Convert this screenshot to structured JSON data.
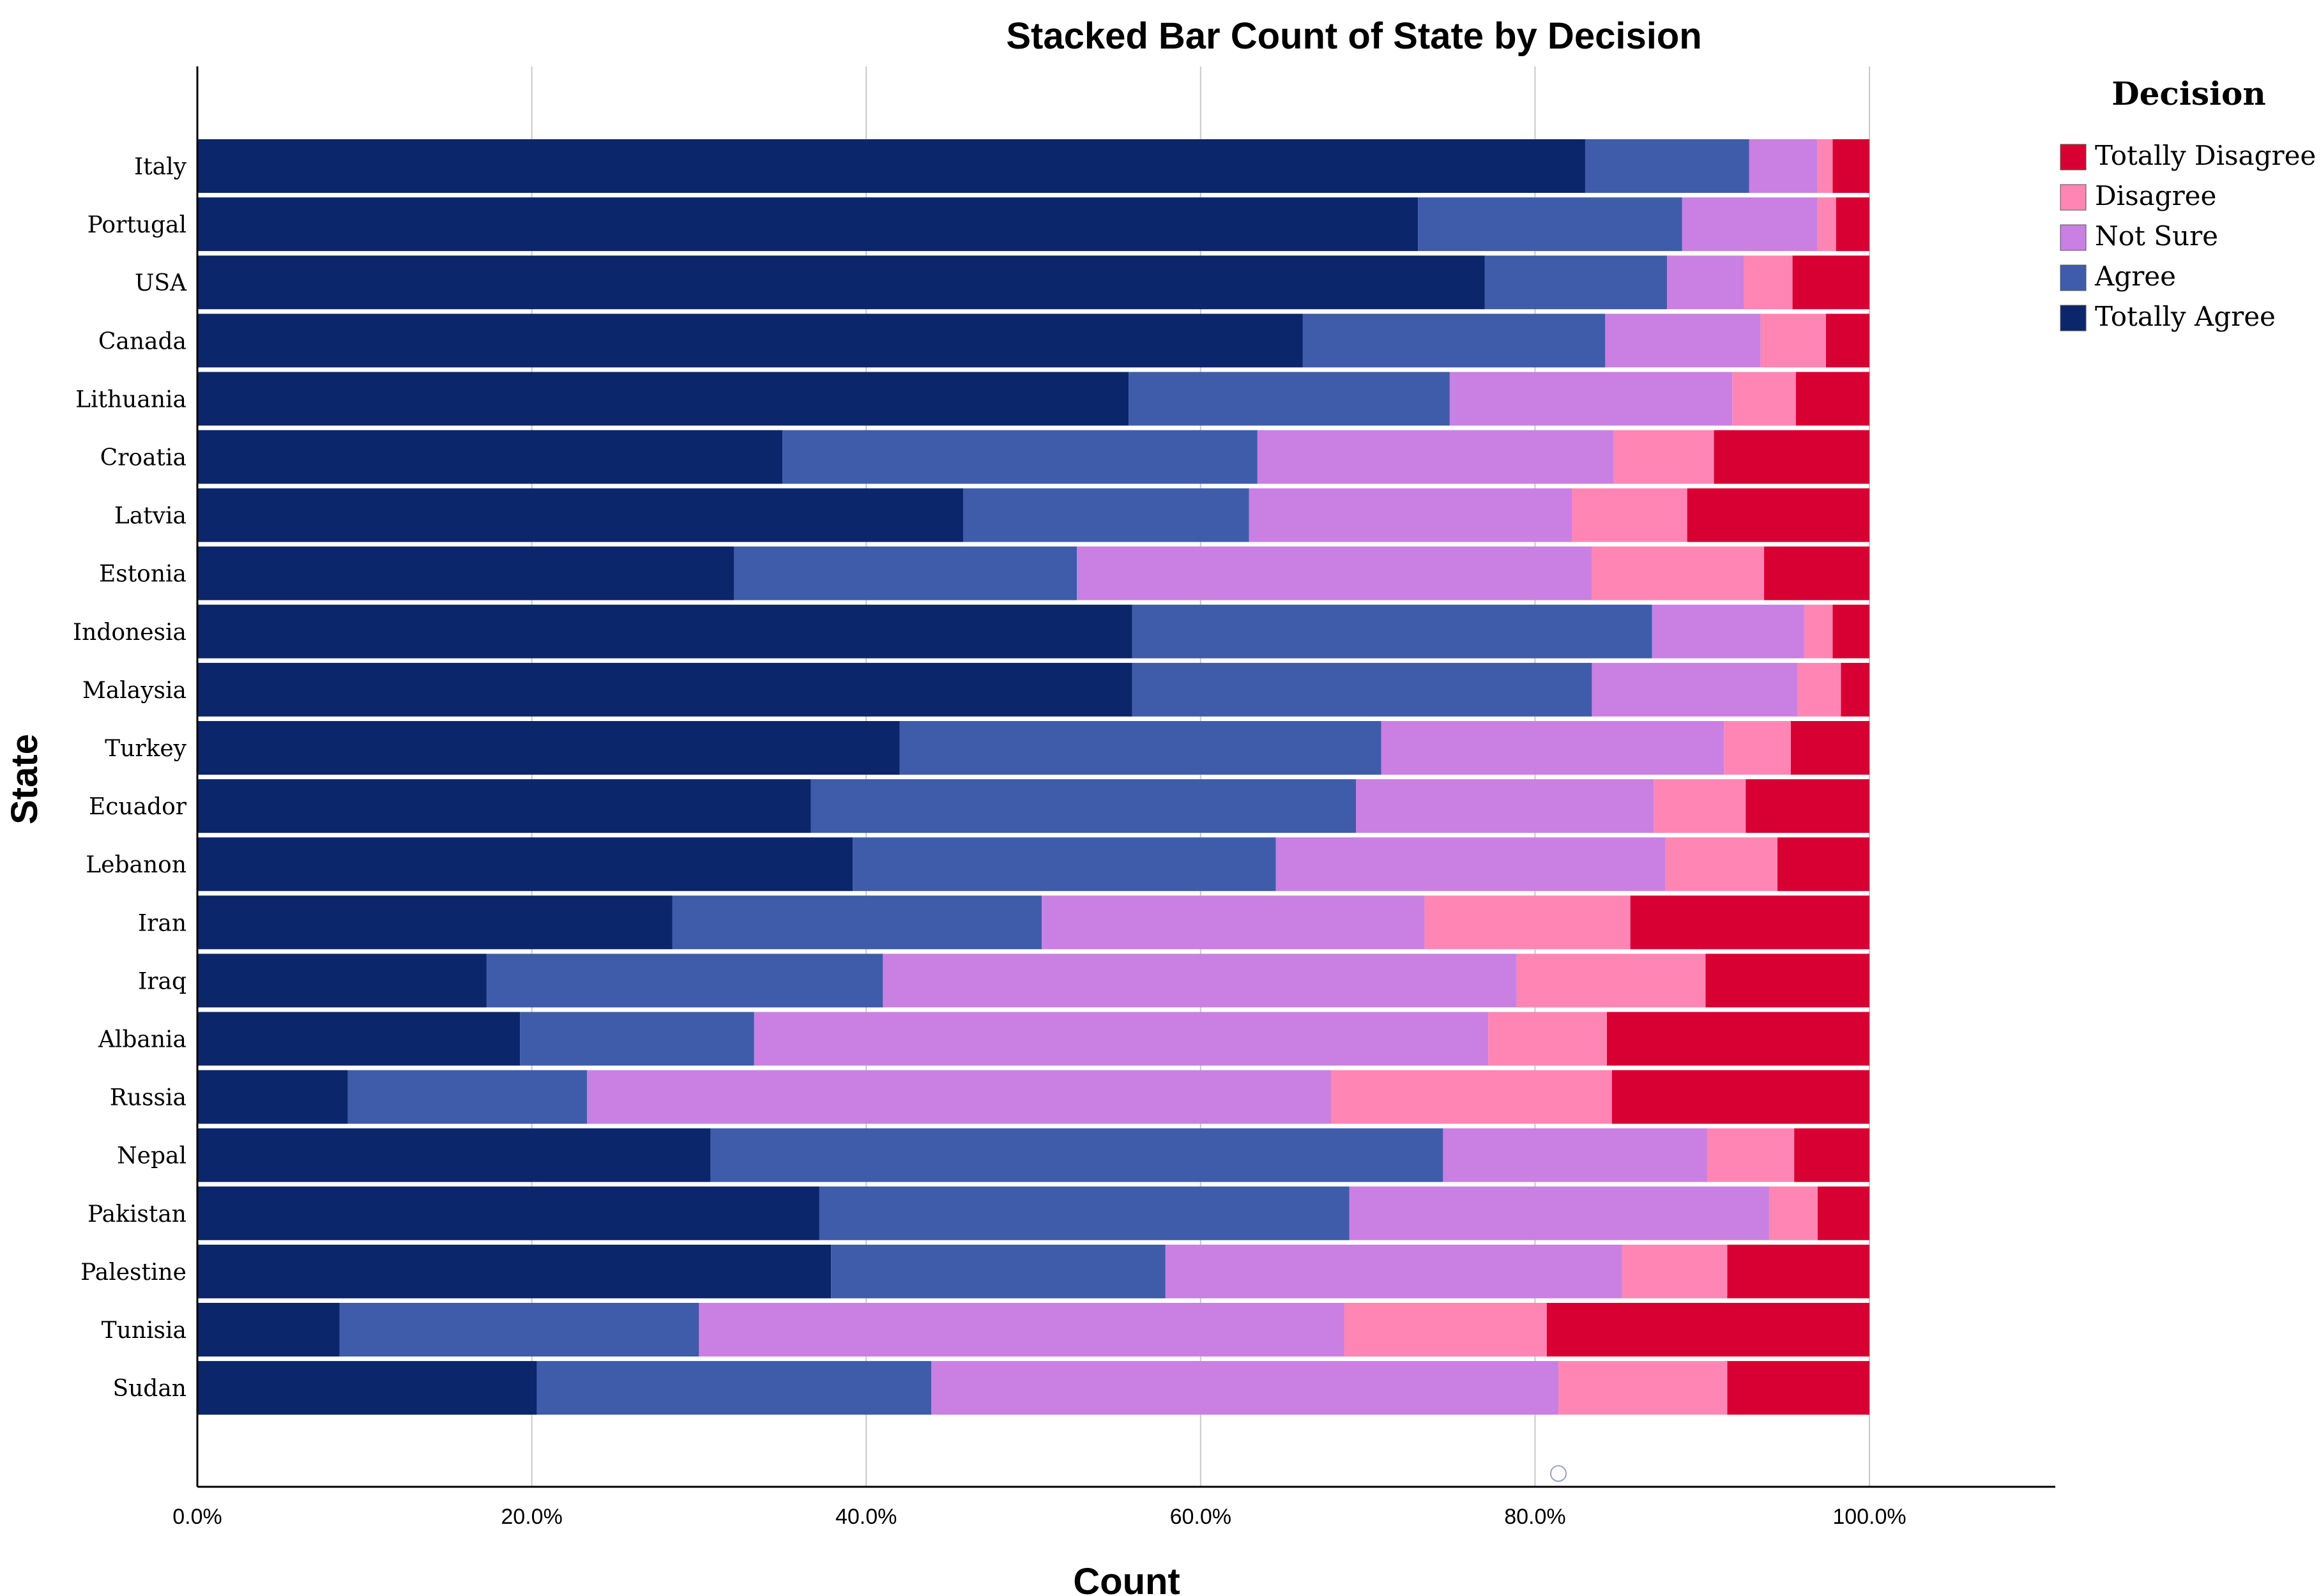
{
  "chart_data": {
    "type": "bar",
    "orientation": "horizontal",
    "stacked": "percent",
    "title": "Stacked Bar Count of State by Decision",
    "xlabel": "Count",
    "ylabel": "State",
    "xlim": [
      0,
      110
    ],
    "x_ticks": [
      "0.0%",
      "20.0%",
      "40.0%",
      "60.0%",
      "80.0%",
      "100.0%"
    ],
    "grid": "vertical",
    "legend_title": "Decision",
    "legend_position": "right",
    "categories": [
      "Italy",
      "Portugal",
      "USA",
      "Canada",
      "Lithuania",
      "Croatia",
      "Latvia",
      "Estonia",
      "Indonesia",
      "Malaysia",
      "Turkey",
      "Ecuador",
      "Lebanon",
      "Iran",
      "Iraq",
      "Albania",
      "Russia",
      "Nepal",
      "Pakistan",
      "Palestine",
      "Tunisia",
      "Sudan"
    ],
    "series": [
      {
        "name": "Totally Agree",
        "color": "#0c266c",
        "values": [
          83.0,
          73.0,
          77.0,
          66.1,
          55.7,
          35.0,
          45.8,
          32.1,
          55.9,
          55.9,
          42.0,
          36.7,
          39.2,
          28.4,
          17.3,
          19.3,
          9.0,
          30.7,
          37.2,
          37.9,
          8.5,
          20.3
        ]
      },
      {
        "name": "Agree",
        "color": "#3f5caa",
        "values": [
          9.8,
          15.8,
          10.9,
          18.1,
          19.2,
          28.4,
          17.1,
          20.5,
          31.1,
          27.5,
          28.8,
          32.6,
          25.3,
          22.1,
          23.7,
          14.0,
          14.3,
          43.8,
          31.7,
          20.0,
          21.5,
          23.6
        ]
      },
      {
        "name": "Not Sure",
        "color": "#c980e2",
        "values": [
          4.1,
          8.1,
          4.6,
          9.3,
          16.9,
          21.3,
          19.3,
          30.8,
          9.1,
          12.3,
          20.5,
          17.8,
          23.3,
          22.9,
          37.9,
          43.9,
          44.5,
          15.8,
          25.1,
          27.3,
          38.6,
          37.5
        ]
      },
      {
        "name": "Disagree",
        "color": "#ff86b4",
        "values": [
          0.9,
          1.1,
          2.9,
          3.9,
          3.8,
          6.0,
          6.9,
          10.3,
          1.7,
          2.6,
          4.0,
          5.5,
          6.7,
          12.3,
          11.3,
          7.1,
          16.8,
          5.2,
          2.9,
          6.3,
          12.1,
          10.1
        ]
      },
      {
        "name": "Totally Disagree",
        "color": "#d80032",
        "values": [
          2.2,
          2.0,
          4.6,
          2.6,
          4.4,
          9.3,
          10.9,
          6.3,
          2.2,
          1.7,
          4.7,
          7.4,
          5.5,
          14.3,
          9.8,
          15.7,
          15.4,
          4.5,
          3.1,
          8.5,
          19.3,
          8.5
        ]
      }
    ],
    "legend_order": [
      "Totally Disagree",
      "Disagree",
      "Not Sure",
      "Agree",
      "Totally Agree"
    ],
    "marker_label": "○"
  }
}
